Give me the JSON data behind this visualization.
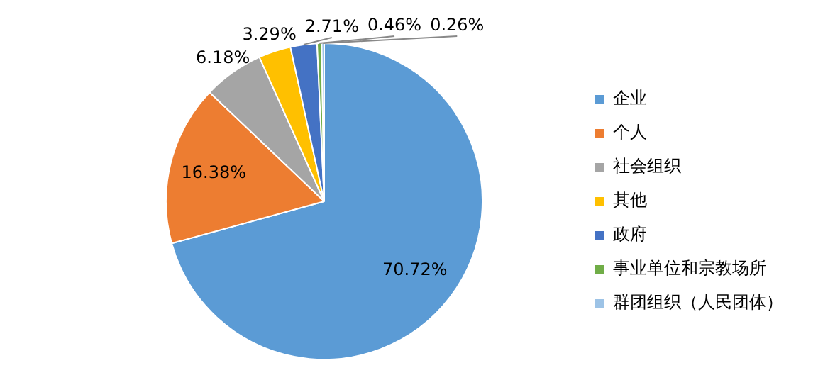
{
  "chart_data": {
    "type": "pie",
    "categories": [
      "企业",
      "个人",
      "社会组织",
      "其他",
      "政府",
      "事业单位和宗教场所",
      "群团组织（人民团体）"
    ],
    "values": [
      70.72,
      16.38,
      6.18,
      3.29,
      2.71,
      0.46,
      0.26
    ],
    "value_labels": [
      "70.72%",
      "16.38%",
      "6.18%",
      "3.29%",
      "2.71%",
      "0.46%",
      "0.26%"
    ],
    "colors": [
      "#5b9bd5",
      "#ed7d31",
      "#a5a5a5",
      "#ffc000",
      "#4472c4",
      "#70ad47",
      "#9dc3e6"
    ],
    "legend": "right"
  }
}
